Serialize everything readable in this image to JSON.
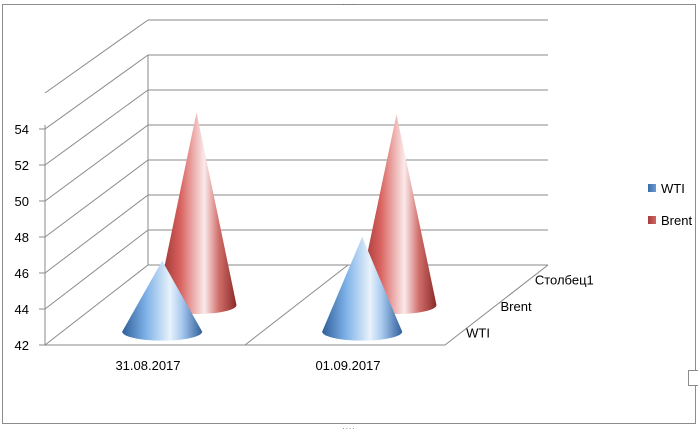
{
  "chart_data": {
    "type": "3d-cone-column",
    "categories": [
      "31.08.2017",
      "01.09.2017"
    ],
    "depth_labels": [
      "WTI",
      "Brent",
      "Столбец1"
    ],
    "series": [
      {
        "name": "WTI",
        "values": [
          45.96,
          47.29
        ],
        "color": "#4f81bd"
      },
      {
        "name": "Brent",
        "values": [
          52.86,
          52.75
        ],
        "color": "#c0504d"
      }
    ],
    "yticks": [
      "42",
      "44",
      "46",
      "48",
      "50",
      "52",
      "54"
    ],
    "ylim": [
      42,
      56
    ],
    "legend_position": "right",
    "grid": true
  }
}
